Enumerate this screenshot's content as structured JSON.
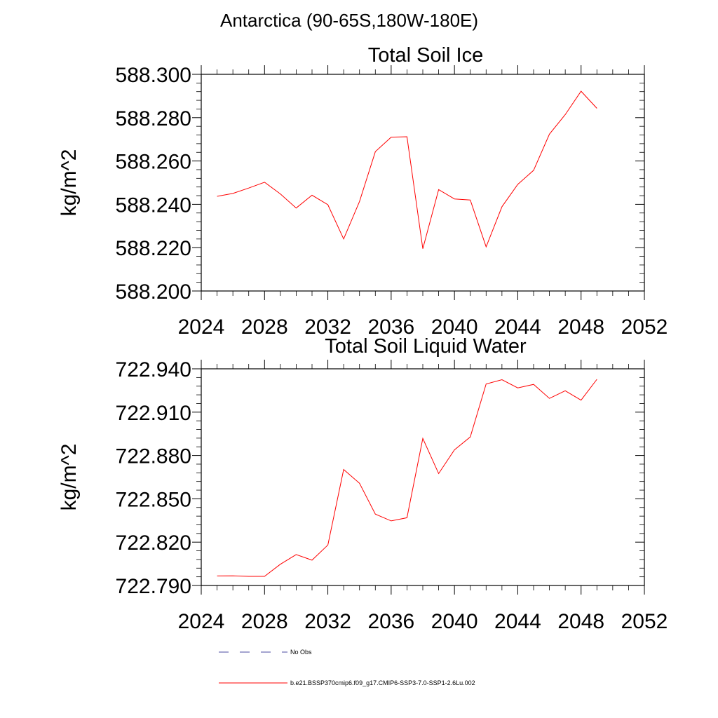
{
  "figure": {
    "title": "Antarctica (90-65S,180W-180E)"
  },
  "chart_data": [
    {
      "type": "line",
      "title": "Total Soil Ice",
      "xlabel": "",
      "ylabel": "kg/m^2",
      "xlim": [
        2024,
        2052
      ],
      "ylim": [
        588.2,
        588.3
      ],
      "x_ticks": [
        "2024",
        "2028",
        "2032",
        "2036",
        "2040",
        "2044",
        "2048",
        "2052"
      ],
      "y_ticks": [
        "588.200",
        "588.220",
        "588.240",
        "588.260",
        "588.280",
        "588.300"
      ],
      "series": [
        {
          "name": "b.e21.BSSP370cmip6.f09_g17.CMIP6-SSP3-7.0-SSP1-2.6Lu.002",
          "color": "#ff0000",
          "x": [
            2025,
            2026,
            2027,
            2028,
            2029,
            2030,
            2031,
            2032,
            2033,
            2034,
            2035,
            2036,
            2037,
            2038,
            2039,
            2040,
            2041,
            2042,
            2043,
            2044,
            2045,
            2046,
            2047,
            2048,
            2049
          ],
          "y": [
            588.2437,
            588.245,
            588.2475,
            588.2502,
            588.2448,
            588.2383,
            588.2442,
            588.2398,
            588.224,
            588.2413,
            588.2643,
            588.271,
            588.2712,
            588.2195,
            588.2468,
            588.2425,
            588.242,
            588.2204,
            588.2389,
            588.2492,
            588.2557,
            588.2724,
            588.2814,
            588.2922,
            588.2843
          ]
        }
      ]
    },
    {
      "type": "line",
      "title": "Total Soil Liquid Water",
      "xlabel": "",
      "ylabel": "kg/m^2",
      "xlim": [
        2024,
        2052
      ],
      "ylim": [
        722.79,
        722.94
      ],
      "x_ticks": [
        "2024",
        "2028",
        "2032",
        "2036",
        "2040",
        "2044",
        "2048",
        "2052"
      ],
      "y_ticks": [
        "722.790",
        "722.820",
        "722.850",
        "722.880",
        "722.910",
        "722.940"
      ],
      "series": [
        {
          "name": "b.e21.BSSP370cmip6.f09_g17.CMIP6-SSP3-7.0-SSP1-2.6Lu.002",
          "color": "#ff0000",
          "x": [
            2025,
            2026,
            2027,
            2028,
            2029,
            2030,
            2031,
            2032,
            2033,
            2034,
            2035,
            2036,
            2037,
            2038,
            2039,
            2040,
            2041,
            2042,
            2043,
            2044,
            2045,
            2046,
            2047,
            2048,
            2049
          ],
          "y": [
            722.7966,
            722.7967,
            722.7963,
            722.7963,
            722.8047,
            722.8114,
            722.8075,
            722.818,
            722.8703,
            722.8608,
            722.8394,
            722.8347,
            722.8369,
            722.8918,
            722.8675,
            722.8839,
            722.8928,
            722.9295,
            722.9325,
            722.9268,
            722.9292,
            722.9195,
            722.9248,
            722.9183,
            722.9327
          ]
        }
      ]
    }
  ],
  "legend": {
    "items": [
      {
        "label": "No Obs",
        "color": "#4a4aa0",
        "style": "dashed"
      },
      {
        "label": "b.e21.BSSP370cmip6.f09_g17.CMIP6-SSP3-7.0-SSP1-2.6Lu.002",
        "color": "#ff0000",
        "style": "solid"
      }
    ]
  }
}
